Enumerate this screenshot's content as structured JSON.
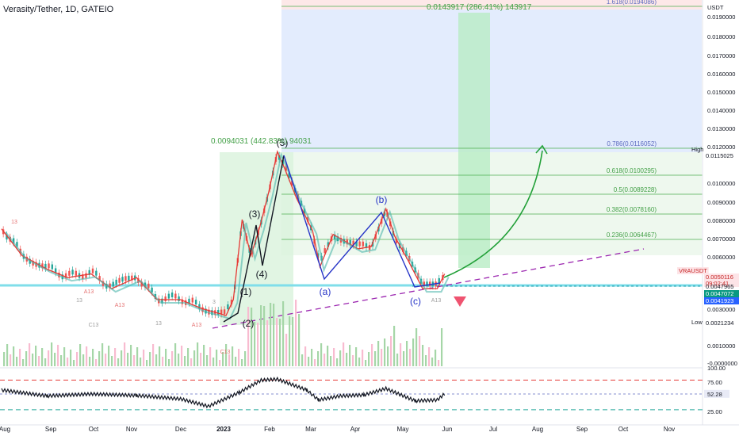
{
  "header": {
    "title": "Verasity/Tether, 1D, GATEIO"
  },
  "colors": {
    "up": "#26a69a",
    "down": "#ef5350",
    "ema_fast": "#e53935",
    "ema_slow": "#4db6ac",
    "wave": "#2634c7",
    "fib_line": "#4caf50",
    "trend": "#9c27b0",
    "target_arrow": "#22a038",
    "price_badge": "#ffebee",
    "green_badge": "#089981",
    "blue_badge": "#2962ff"
  },
  "chart_data": [
    {
      "type": "line",
      "series": [
        {
          "kind": "price-candles",
          "x": [
            "2022-08-01",
            "2022-08-15",
            "2022-09-01",
            "2022-09-15",
            "2022-10-01",
            "2022-10-15",
            "2022-11-01",
            "2022-11-15",
            "2022-12-01",
            "2022-12-15",
            "2023-01-01",
            "2023-01-06",
            "2023-01-12",
            "2023-01-18",
            "2023-01-24",
            "2023-01-30",
            "2023-02-05",
            "2023-02-10",
            "2023-02-18",
            "2023-03-01",
            "2023-03-06",
            "2023-03-15",
            "2023-04-01",
            "2023-04-10",
            "2023-04-20",
            "2023-04-26",
            "2023-05-05",
            "2023-05-15",
            "2023-05-25",
            "2023-05-30"
          ],
          "values": [
            0.0071,
            0.0058,
            0.0052,
            0.0049,
            0.005,
            0.0046,
            0.0049,
            0.0043,
            0.0043,
            0.004,
            0.0037,
            0.0043,
            0.0076,
            0.0058,
            0.0072,
            0.0091,
            0.0115,
            0.0105,
            0.0088,
            0.007,
            0.0053,
            0.0068,
            0.0061,
            0.0062,
            0.0082,
            0.0067,
            0.0056,
            0.0046,
            0.0046,
            0.005
          ]
        }
      ],
      "y_scale": "log",
      "ylim": [
        -0.0001,
        0.0199
      ],
      "x_ticks": [
        "Aug",
        "Sep",
        "Oct",
        "Nov",
        "Dec",
        "2023",
        "Feb",
        "Mar",
        "Apr",
        "May",
        "Jun",
        "Jul",
        "Aug",
        "Sep",
        "Oct",
        "Nov"
      ],
      "y_ticks": [
        "0.0190000",
        "0.0180000",
        "0.0170000",
        "0.0160000",
        "0.0150000",
        "0.0140000",
        "0.0130000",
        "0.0120000",
        "0.0100000",
        "0.0090000",
        "0.0080000",
        "0.0070000",
        "0.0060000",
        "0.0030000",
        "0.0010000",
        "-0.0000000"
      ],
      "y_axis_unit": "USDT",
      "fib_levels": [
        {
          "label": "1.618(0.0194086)",
          "value": 0.0194086
        },
        {
          "label": "0.786(0.0116052)",
          "value": 0.0116052
        },
        {
          "label": "0.618(0.0100295)",
          "value": 0.0100295
        },
        {
          "label": "0.5(0.0089228)",
          "value": 0.0089228
        },
        {
          "label": "0.382(0.0078160)",
          "value": 0.007816
        },
        {
          "label": "0.236(0.0064467)",
          "value": 0.0064467
        }
      ],
      "wave_labels": [
        "(1)",
        "(2)",
        "(3)",
        "(4)",
        "(5)",
        "(a)",
        "(b)",
        "(c)"
      ],
      "measure_labels": [
        "0.0094031 (442.83%) 94031",
        "0.0143917 (286.41%) 143917"
      ],
      "seq_labels": [
        "13",
        "13",
        "A13",
        "13",
        "A13",
        "C13",
        "A13",
        "A13",
        "C13",
        "3"
      ],
      "price_labels": [
        {
          "text": "High",
          "kind": "plain"
        },
        {
          "text": "0.0115025",
          "kind": "plain"
        },
        {
          "text": "VRAUSDT",
          "kind": "red"
        },
        {
          "text": "0.0050116",
          "kind": "red"
        },
        {
          "text": "09:02:41",
          "kind": "red"
        },
        {
          "text": "0.0047965",
          "kind": "plain"
        },
        {
          "text": "0.0047072",
          "kind": "green"
        },
        {
          "text": "0.0041923",
          "kind": "blue"
        },
        {
          "text": "Low",
          "kind": "plain"
        },
        {
          "text": "0.0021234",
          "kind": "plain"
        }
      ]
    },
    {
      "type": "line",
      "series": [
        {
          "kind": "oscillator",
          "x": [
            "2022-08-01",
            "2022-09-01",
            "2022-10-01",
            "2022-11-01",
            "2022-12-01",
            "2022-12-20",
            "2023-01-10",
            "2023-01-25",
            "2023-02-05",
            "2023-02-25",
            "2023-03-05",
            "2023-03-20",
            "2023-04-05",
            "2023-04-20",
            "2023-05-10",
            "2023-05-25",
            "2023-05-30"
          ],
          "values": [
            60,
            48,
            52,
            49,
            42,
            27,
            55,
            80,
            82,
            60,
            40,
            48,
            50,
            63,
            38,
            40,
            52.28
          ]
        }
      ],
      "ylim": [
        15,
        105
      ],
      "y_ticks": [
        "100.00",
        "75.00",
        "25.00"
      ],
      "value_label": "52.28",
      "levels": [
        80,
        52,
        20
      ]
    }
  ]
}
